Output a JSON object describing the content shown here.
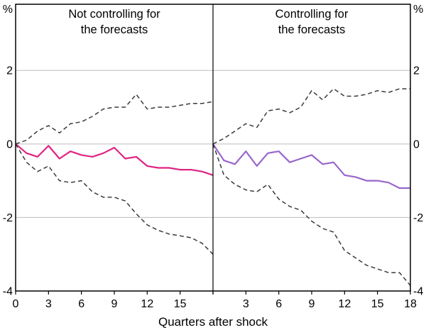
{
  "axes": {
    "xlabel": "Quarters after shock",
    "unit": "%",
    "x_domain": [
      0,
      18
    ],
    "y_domain": [
      -4,
      3.8
    ],
    "y_ticks": [
      2,
      0,
      -2,
      -4
    ],
    "y_gridlines": [
      2,
      0,
      -2
    ],
    "x_ticks": [
      0,
      3,
      6,
      9,
      12,
      15,
      18
    ]
  },
  "colors": {
    "grid": "#bdbdbd",
    "frame": "#000000",
    "band": "#3a3a3a",
    "left_line": "#e02383",
    "right_line": "#9966cb"
  },
  "chart_data": [
    {
      "type": "line",
      "title": "Not controlling for the forecasts",
      "title_lines": [
        "Not controlling for",
        "the forecasts"
      ],
      "x_tick_labels": [
        0,
        3,
        6,
        9,
        12,
        15
      ],
      "x": [
        0,
        1,
        2,
        3,
        4,
        5,
        6,
        7,
        8,
        9,
        10,
        11,
        12,
        13,
        14,
        15,
        16,
        17,
        18
      ],
      "series": [
        {
          "name": "upper band",
          "style": "dashed",
          "color": "#3a3a3a",
          "values": [
            0,
            0.1,
            0.35,
            0.5,
            0.3,
            0.55,
            0.6,
            0.75,
            0.95,
            1.0,
            1.0,
            1.35,
            0.95,
            1.0,
            1.0,
            1.05,
            1.1,
            1.1,
            1.15
          ]
        },
        {
          "name": "response",
          "style": "solid",
          "color": "#e02383",
          "values": [
            0,
            -0.25,
            -0.35,
            -0.05,
            -0.4,
            -0.2,
            -0.3,
            -0.35,
            -0.25,
            -0.1,
            -0.4,
            -0.35,
            -0.6,
            -0.65,
            -0.65,
            -0.7,
            -0.7,
            -0.75,
            -0.85
          ]
        },
        {
          "name": "lower band",
          "style": "dashed",
          "color": "#3a3a3a",
          "values": [
            0,
            -0.5,
            -0.75,
            -0.6,
            -1.0,
            -1.05,
            -1.0,
            -1.3,
            -1.45,
            -1.45,
            -1.55,
            -1.9,
            -2.2,
            -2.35,
            -2.45,
            -2.5,
            -2.55,
            -2.7,
            -3.0
          ]
        }
      ]
    },
    {
      "type": "line",
      "title": "Controlling for the forecasts",
      "title_lines": [
        "Controlling for",
        "the forecasts"
      ],
      "x_tick_labels": [
        3,
        6,
        9,
        12,
        15,
        18
      ],
      "x": [
        0,
        1,
        2,
        3,
        4,
        5,
        6,
        7,
        8,
        9,
        10,
        11,
        12,
        13,
        14,
        15,
        16,
        17,
        18
      ],
      "series": [
        {
          "name": "upper band",
          "style": "dashed",
          "color": "#3a3a3a",
          "values": [
            0,
            0.15,
            0.35,
            0.55,
            0.45,
            0.9,
            0.95,
            0.85,
            1.0,
            1.45,
            1.2,
            1.5,
            1.3,
            1.3,
            1.35,
            1.45,
            1.4,
            1.5,
            1.5
          ]
        },
        {
          "name": "response",
          "style": "solid",
          "color": "#9966cb",
          "values": [
            0,
            -0.45,
            -0.55,
            -0.2,
            -0.6,
            -0.25,
            -0.2,
            -0.5,
            -0.4,
            -0.3,
            -0.55,
            -0.5,
            -0.85,
            -0.9,
            -1.0,
            -1.0,
            -1.05,
            -1.2,
            -1.2
          ]
        },
        {
          "name": "lower band",
          "style": "dashed",
          "color": "#3a3a3a",
          "values": [
            0,
            -0.85,
            -1.1,
            -1.25,
            -1.3,
            -1.1,
            -1.5,
            -1.7,
            -1.8,
            -2.1,
            -2.3,
            -2.4,
            -2.9,
            -3.1,
            -3.3,
            -3.4,
            -3.5,
            -3.5,
            -3.85
          ]
        }
      ]
    }
  ]
}
